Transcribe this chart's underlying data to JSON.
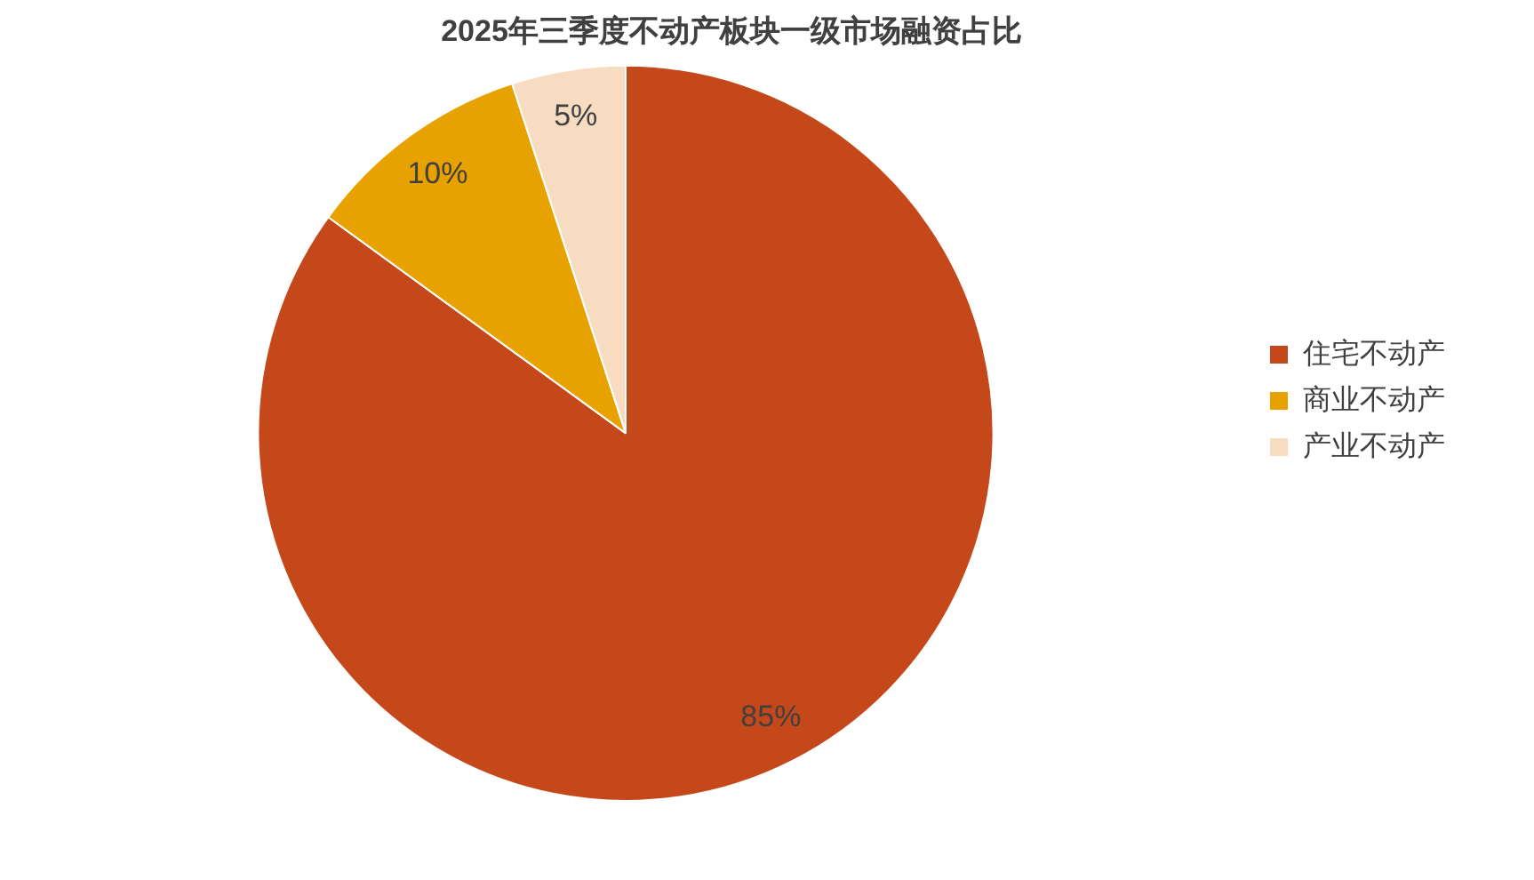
{
  "chart_data": {
    "type": "pie",
    "title": "2025年三季度不动产板块一级市场融资占比",
    "categories": [
      "住宅不动产",
      "商业不动产",
      "产业不动产"
    ],
    "values": [
      85,
      10,
      5
    ],
    "colors": [
      "#c4481a",
      "#e8a200",
      "#f8dcc2"
    ],
    "value_labels": [
      "85%",
      "10%",
      "5%"
    ],
    "legend": "right"
  }
}
